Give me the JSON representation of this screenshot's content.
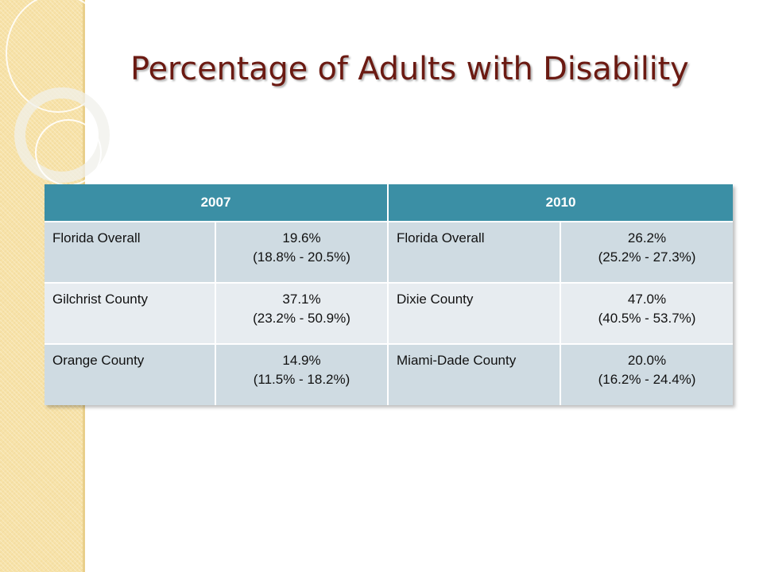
{
  "slide": {
    "title": "Percentage of Adults with Disability"
  },
  "table": {
    "headers": [
      "2007",
      "2010"
    ],
    "rows": [
      {
        "name_2007": "Florida Overall",
        "pct_2007": "19.6%",
        "ci_2007": "(18.8% - 20.5%)",
        "name_2010": "Florida Overall",
        "pct_2010": "26.2%",
        "ci_2010": "(25.2% - 27.3%)"
      },
      {
        "name_2007": "Gilchrist County",
        "pct_2007": "37.1%",
        "ci_2007": "(23.2% - 50.9%)",
        "name_2010": "Dixie County",
        "pct_2010": "47.0%",
        "ci_2010": "(40.5% - 53.7%)"
      },
      {
        "name_2007": "Orange County",
        "pct_2007": "14.9%",
        "ci_2007": "(11.5% - 18.2%)",
        "name_2010": "Miami-Dade County",
        "pct_2010": "20.0%",
        "ci_2010": "(16.2% - 24.4%)"
      }
    ]
  },
  "colors": {
    "title": "#6b1a12",
    "header_bg": "#3b8fa5",
    "row_dark": "#cfdbe2",
    "row_light": "#e7ecf0",
    "side_band": "#f7e2a8"
  }
}
